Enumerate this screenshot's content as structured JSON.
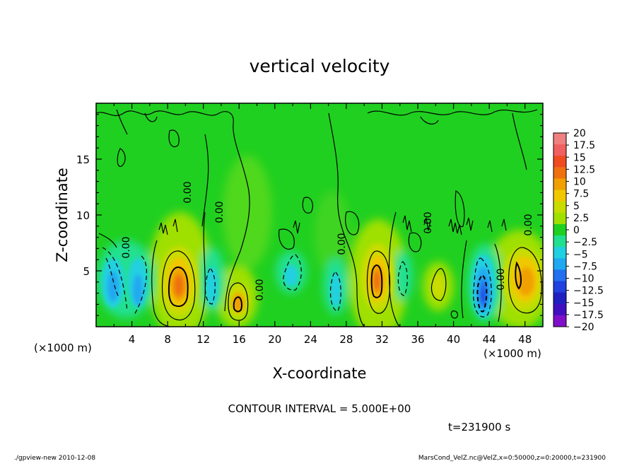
{
  "chart_data": {
    "type": "heatmap",
    "title": "vertical velocity",
    "xlabel": "X-coordinate",
    "ylabel": "Z-coordinate",
    "x_unit_label": "(×1000 m)",
    "y_unit_label": "(×1000 m)",
    "xlim": [
      0,
      50
    ],
    "ylim": [
      0,
      20
    ],
    "x_ticks": [
      4,
      8,
      12,
      16,
      20,
      24,
      28,
      32,
      36,
      40,
      44,
      48
    ],
    "y_ticks": [
      5,
      10,
      15
    ],
    "colorbar": {
      "levels": [
        20,
        17.5,
        15,
        12.5,
        10,
        7.5,
        5,
        2.5,
        0,
        -2.5,
        -5,
        -7.5,
        -10,
        -12.5,
        -15,
        -17.5,
        -20
      ],
      "tick_labels": [
        "20",
        "17.5",
        "15",
        "12.5",
        "10",
        "7.5",
        "5",
        "2.5",
        "0",
        "−2.5",
        "−5",
        "−7.5",
        "−10",
        "−12.5",
        "−15",
        "−17.5",
        "−20"
      ],
      "colors": [
        "#f08080",
        "#f06060",
        "#f04a20",
        "#f07010",
        "#f0a000",
        "#f0c800",
        "#c8dc00",
        "#a0e000",
        "#20d020",
        "#20e090",
        "#20d0e0",
        "#20a8f0",
        "#2070f0",
        "#2040e0",
        "#2020c0",
        "#4010c0",
        "#8010c8"
      ]
    },
    "contour_interval_text": "CONTOUR INTERVAL = 5.000E+00",
    "contour_labels": [
      "0.00",
      "0.00",
      "0.00",
      "0.00",
      "0.00",
      "0.00",
      "0.00",
      "0.00"
    ],
    "time_text": "t=231900 s",
    "features": [
      {
        "type": "updraft",
        "x": 9.5,
        "z": 4,
        "peak": 12.5
      },
      {
        "type": "updraft",
        "x": 16,
        "z": 2.3,
        "peak": 10
      },
      {
        "type": "updraft",
        "x": 31,
        "z": 4.5,
        "peak": 12.5
      },
      {
        "type": "updraft",
        "x": 47.5,
        "z": 4,
        "peak": 10
      },
      {
        "type": "updraft",
        "x": 38.5,
        "z": 4,
        "peak": 5
      },
      {
        "type": "downdraft",
        "x": 3.5,
        "z": 3.5,
        "peak": -7.5
      },
      {
        "type": "downdraft",
        "x": 43.5,
        "z": 3,
        "peak": -12.5
      },
      {
        "type": "downdraft",
        "x": 12.5,
        "z": 4,
        "peak": -5
      },
      {
        "type": "downdraft",
        "x": 27.5,
        "z": 3.5,
        "peak": -5
      },
      {
        "type": "downdraft",
        "x": 23,
        "z": 5,
        "peak": -2.5
      }
    ]
  },
  "footer": {
    "left": "./gpview-new  2010-12-08",
    "right": "MarsCond_VelZ.nc@VelZ,x=0:50000,z=0:20000,t=231900"
  }
}
